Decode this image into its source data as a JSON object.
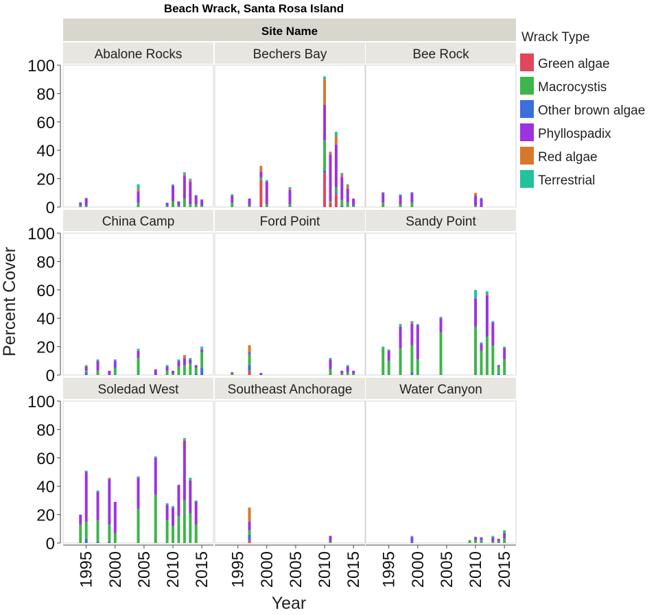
{
  "chart_data": {
    "type": "bar",
    "stacked": true,
    "title": "Beach Wrack, Santa Rosa Island",
    "facet_header": "Site Name",
    "xlabel": "Year",
    "ylabel": "Percent Cover",
    "ylim": [
      0,
      100
    ],
    "yticks": [
      0,
      20,
      40,
      60,
      80,
      100
    ],
    "xlim": [
      1991,
      2017
    ],
    "xticks": [
      1995,
      2000,
      2005,
      2010,
      2015
    ],
    "legend": {
      "title": "Wrack Type",
      "position": "right",
      "items": [
        {
          "name": "Green algae",
          "color": "#e0475a"
        },
        {
          "name": "Macrocystis",
          "color": "#3cb54a"
        },
        {
          "name": "Other brown algae",
          "color": "#3b6fdc"
        },
        {
          "name": "Phyllospadix",
          "color": "#9b34e0"
        },
        {
          "name": "Red algae",
          "color": "#d9772b"
        },
        {
          "name": "Terrestrial",
          "color": "#22c39a"
        }
      ]
    },
    "series_order": [
      "Green algae",
      "Other brown algae",
      "Macrocystis",
      "Phyllospadix",
      "Red algae",
      "Terrestrial"
    ],
    "panels": [
      {
        "site": "Abalone Rocks",
        "bars": [
          {
            "year": 1994,
            "Macrocystis": 1,
            "Phyllospadix": 2,
            "Terrestrial": 0.5
          },
          {
            "year": 1995,
            "Macrocystis": 1,
            "Phyllospadix": 5,
            "Terrestrial": 0.5
          },
          {
            "year": 2004,
            "Macrocystis": 3,
            "Phyllospadix": 8,
            "Red algae": 2,
            "Terrestrial": 3
          },
          {
            "year": 2009,
            "Macrocystis": 1,
            "Phyllospadix": 2
          },
          {
            "year": 2010,
            "Macrocystis": 4,
            "Phyllospadix": 11,
            "Terrestrial": 1
          },
          {
            "year": 2011,
            "Macrocystis": 1,
            "Phyllospadix": 3
          },
          {
            "year": 2012,
            "Macrocystis": 6,
            "Phyllospadix": 16,
            "Red algae": 1,
            "Terrestrial": 1.5
          },
          {
            "year": 2013,
            "Macrocystis": 2,
            "Phyllospadix": 16,
            "Red algae": 1,
            "Terrestrial": 1
          },
          {
            "year": 2014,
            "Macrocystis": 2,
            "Phyllospadix": 6,
            "Terrestrial": 0.5
          },
          {
            "year": 2015,
            "Macrocystis": 1,
            "Phyllospadix": 4,
            "Terrestrial": 0.5
          }
        ]
      },
      {
        "site": "Bechers Bay",
        "bars": [
          {
            "year": 1994,
            "Macrocystis": 3,
            "Phyllospadix": 5,
            "Terrestrial": 1
          },
          {
            "year": 1997,
            "Macrocystis": 1,
            "Phyllospadix": 5
          },
          {
            "year": 1999,
            "Green algae": 19,
            "Macrocystis": 2,
            "Phyllospadix": 4,
            "Red algae": 4
          },
          {
            "year": 2000,
            "Macrocystis": 2,
            "Phyllospadix": 16,
            "Terrestrial": 1
          },
          {
            "year": 2004,
            "Macrocystis": 2,
            "Phyllospadix": 10,
            "Red algae": 1,
            "Terrestrial": 1
          },
          {
            "year": 2010,
            "Green algae": 24,
            "Other brown algae": 2,
            "Macrocystis": 21,
            "Phyllospadix": 25,
            "Red algae": 18,
            "Terrestrial": 2
          },
          {
            "year": 2011,
            "Green algae": 3,
            "Macrocystis": 1,
            "Phyllospadix": 33,
            "Red algae": 2
          },
          {
            "year": 2012,
            "Green algae": 9,
            "Other brown algae": 1,
            "Macrocystis": 4,
            "Phyllospadix": 30,
            "Red algae": 6,
            "Terrestrial": 3
          },
          {
            "year": 2013,
            "Other brown algae": 1,
            "Macrocystis": 4,
            "Phyllospadix": 16,
            "Red algae": 2,
            "Terrestrial": 1
          },
          {
            "year": 2014,
            "Macrocystis": 3,
            "Phyllospadix": 10,
            "Red algae": 2,
            "Terrestrial": 1
          },
          {
            "year": 2015,
            "Macrocystis": 1,
            "Phyllospadix": 5
          }
        ]
      },
      {
        "site": "Bee Rock",
        "bars": [
          {
            "year": 1994,
            "Macrocystis": 3,
            "Phyllospadix": 7,
            "Terrestrial": 0.5
          },
          {
            "year": 1997,
            "Macrocystis": 2,
            "Phyllospadix": 6,
            "Terrestrial": 1
          },
          {
            "year": 1999,
            "Macrocystis": 3,
            "Phyllospadix": 7,
            "Terrestrial": 0.5
          },
          {
            "year": 2010,
            "Macrocystis": 1,
            "Phyllospadix": 7,
            "Red algae": 2
          },
          {
            "year": 2011,
            "Phyllospadix": 6,
            "Terrestrial": 0.5
          }
        ]
      },
      {
        "site": "China Camp",
        "bars": [
          {
            "year": 1995,
            "Other brown algae": 2,
            "Macrocystis": 1,
            "Phyllospadix": 3,
            "Terrestrial": 1
          },
          {
            "year": 1997,
            "Macrocystis": 3,
            "Phyllospadix": 7,
            "Terrestrial": 1
          },
          {
            "year": 1999,
            "Phyllospadix": 3
          },
          {
            "year": 2000,
            "Macrocystis": 5,
            "Phyllospadix": 5,
            "Terrestrial": 1
          },
          {
            "year": 2004,
            "Macrocystis": 12,
            "Phyllospadix": 5,
            "Terrestrial": 1.5
          },
          {
            "year": 2007,
            "Phyllospadix": 4
          },
          {
            "year": 2009,
            "Macrocystis": 3,
            "Phyllospadix": 3,
            "Terrestrial": 1
          },
          {
            "year": 2010,
            "Macrocystis": 1,
            "Phyllospadix": 2
          },
          {
            "year": 2011,
            "Macrocystis": 6,
            "Phyllospadix": 4,
            "Terrestrial": 1
          },
          {
            "year": 2012,
            "Macrocystis": 7,
            "Phyllospadix": 5,
            "Red algae": 2
          },
          {
            "year": 2013,
            "Macrocystis": 8,
            "Phyllospadix": 3,
            "Terrestrial": 1
          },
          {
            "year": 2014,
            "Other brown algae": 1,
            "Macrocystis": 4,
            "Phyllospadix": 2
          },
          {
            "year": 2015,
            "Other brown algae": 5,
            "Macrocystis": 11,
            "Phyllospadix": 2,
            "Terrestrial": 2
          }
        ]
      },
      {
        "site": "Ford Point",
        "bars": [
          {
            "year": 1994,
            "Macrocystis": 1,
            "Phyllospadix": 1
          },
          {
            "year": 1997,
            "Other brown algae": 4,
            "Green algae": 3,
            "Macrocystis": 8,
            "Phyllospadix": 1,
            "Red algae": 5
          },
          {
            "year": 1999,
            "Phyllospadix": 1.5
          },
          {
            "year": 2011,
            "Macrocystis": 4,
            "Phyllospadix": 7,
            "Terrestrial": 1
          },
          {
            "year": 2013,
            "Macrocystis": 1,
            "Phyllospadix": 2
          },
          {
            "year": 2014,
            "Macrocystis": 2,
            "Phyllospadix": 4,
            "Terrestrial": 1
          },
          {
            "year": 2015,
            "Macrocystis": 1,
            "Phyllospadix": 2
          }
        ]
      },
      {
        "site": "Sandy Point",
        "bars": [
          {
            "year": 1994,
            "Macrocystis": 19,
            "Terrestrial": 1
          },
          {
            "year": 1995,
            "Macrocystis": 10,
            "Phyllospadix": 7,
            "Terrestrial": 1
          },
          {
            "year": 1997,
            "Macrocystis": 19,
            "Phyllospadix": 15,
            "Terrestrial": 2
          },
          {
            "year": 1999,
            "Other brown algae": 2,
            "Macrocystis": 19,
            "Phyllospadix": 15,
            "Red algae": 1,
            "Terrestrial": 1
          },
          {
            "year": 2000,
            "Macrocystis": 11,
            "Phyllospadix": 24,
            "Terrestrial": 1
          },
          {
            "year": 2004,
            "Macrocystis": 30,
            "Phyllospadix": 10,
            "Terrestrial": 1
          },
          {
            "year": 2010,
            "Macrocystis": 34,
            "Phyllospadix": 20,
            "Terrestrial": 6
          },
          {
            "year": 2011,
            "Macrocystis": 17,
            "Phyllospadix": 5,
            "Terrestrial": 1
          },
          {
            "year": 2012,
            "Macrocystis": 27,
            "Phyllospadix": 29,
            "Red algae": 1,
            "Terrestrial": 2
          },
          {
            "year": 2013,
            "Macrocystis": 21,
            "Phyllospadix": 16,
            "Terrestrial": 1
          },
          {
            "year": 2014,
            "Other brown algae": 1,
            "Macrocystis": 5,
            "Phyllospadix": 1
          },
          {
            "year": 2015,
            "Macrocystis": 11,
            "Phyllospadix": 8,
            "Terrestrial": 1
          }
        ]
      },
      {
        "site": "Soledad West",
        "bars": [
          {
            "year": 1994,
            "Macrocystis": 13,
            "Phyllospadix": 7
          },
          {
            "year": 1995,
            "Other brown algae": 3,
            "Macrocystis": 12,
            "Phyllospadix": 35,
            "Terrestrial": 1
          },
          {
            "year": 1997,
            "Other brown algae": 1,
            "Macrocystis": 15,
            "Phyllospadix": 20,
            "Terrestrial": 1
          },
          {
            "year": 1999,
            "Other brown algae": 1,
            "Macrocystis": 12,
            "Phyllospadix": 32,
            "Red algae": 1
          },
          {
            "year": 2000,
            "Macrocystis": 7,
            "Phyllospadix": 22
          },
          {
            "year": 2004,
            "Macrocystis": 24,
            "Phyllospadix": 22,
            "Terrestrial": 1
          },
          {
            "year": 2007,
            "Macrocystis": 34,
            "Phyllospadix": 26,
            "Terrestrial": 1
          },
          {
            "year": 2009,
            "Macrocystis": 16,
            "Phyllospadix": 11,
            "Terrestrial": 1
          },
          {
            "year": 2010,
            "Macrocystis": 12,
            "Phyllospadix": 13,
            "Terrestrial": 1
          },
          {
            "year": 2011,
            "Macrocystis": 19,
            "Phyllospadix": 22
          },
          {
            "year": 2012,
            "Macrocystis": 30,
            "Phyllospadix": 42,
            "Red algae": 1,
            "Terrestrial": 1
          },
          {
            "year": 2013,
            "Macrocystis": 21,
            "Phyllospadix": 23,
            "Terrestrial": 2
          },
          {
            "year": 2014,
            "Macrocystis": 13,
            "Phyllospadix": 16,
            "Terrestrial": 1
          }
        ]
      },
      {
        "site": "Southeast Anchorage",
        "bars": [
          {
            "year": 1997,
            "Other brown algae": 4,
            "Macrocystis": 3,
            "Green algae": 2,
            "Phyllospadix": 6,
            "Red algae": 10
          },
          {
            "year": 2011,
            "Macrocystis": 1,
            "Phyllospadix": 4
          }
        ]
      },
      {
        "site": "Water Canyon",
        "bars": [
          {
            "year": 1999,
            "Other brown algae": 1,
            "Phyllospadix": 3,
            "Terrestrial": 1
          },
          {
            "year": 2009,
            "Macrocystis": 2
          },
          {
            "year": 2010,
            "Macrocystis": 2,
            "Phyllospadix": 2,
            "Terrestrial": 0.5
          },
          {
            "year": 2011,
            "Macrocystis": 2,
            "Phyllospadix": 2
          },
          {
            "year": 2013,
            "Macrocystis": 1,
            "Phyllospadix": 3,
            "Terrestrial": 1
          },
          {
            "year": 2014,
            "Macrocystis": 1,
            "Phyllospadix": 2
          },
          {
            "year": 2015,
            "Macrocystis": 3,
            "Phyllospadix": 4,
            "Terrestrial": 2
          }
        ]
      }
    ]
  }
}
